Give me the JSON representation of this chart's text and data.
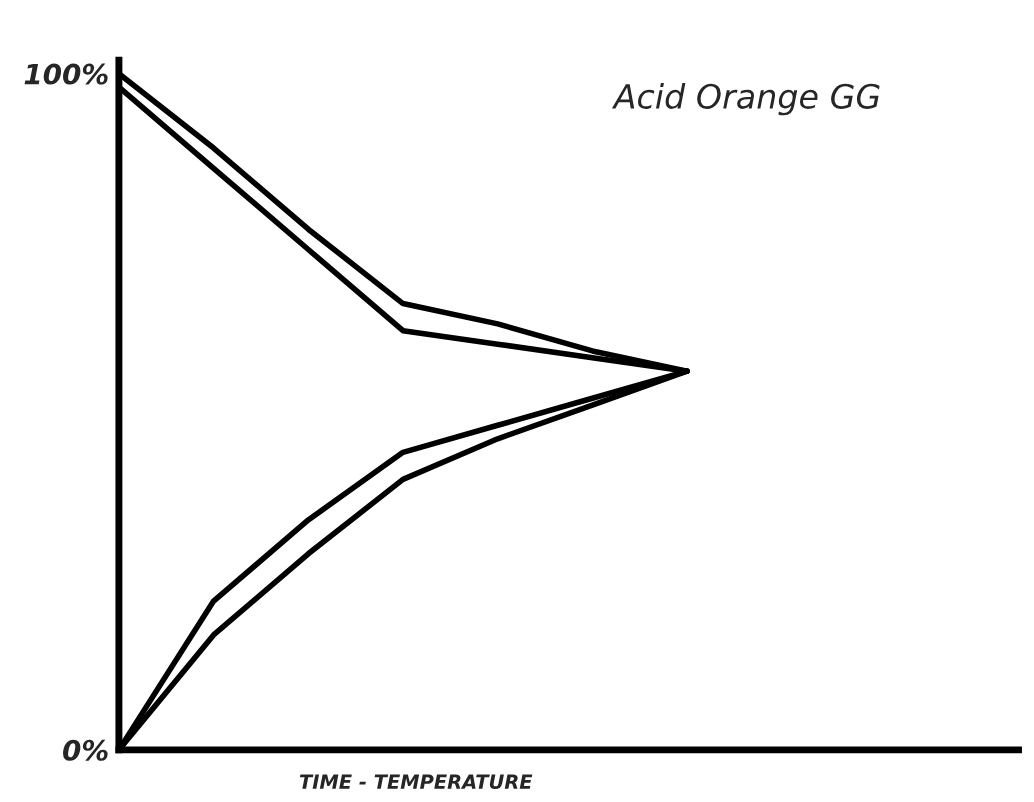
{
  "chart_data": {
    "type": "line",
    "title": "Acid Orange GG",
    "xlabel": "TIME - TEMPERATURE",
    "categories": [
      null,
      null,
      null,
      null,
      null,
      null,
      null,
      null,
      null,
      null
    ],
    "ylim": [
      0,
      102
    ],
    "yticks": [
      {
        "value": 0,
        "label": "0%"
      },
      {
        "value": 100,
        "label": "100%"
      }
    ],
    "grid": false,
    "marker": "none",
    "line_style": "solid",
    "series": [
      {
        "color": "#000000",
        "values": [
          100,
          89,
          77,
          66,
          63,
          59,
          56,
          null,
          null,
          null
        ]
      },
      {
        "color": "#000000",
        "values": [
          98,
          86,
          74,
          62,
          60,
          58,
          56,
          null,
          null,
          null
        ]
      },
      {
        "color": "#000000",
        "values": [
          0,
          22,
          34,
          44,
          48,
          52,
          56,
          null,
          null,
          null
        ]
      },
      {
        "color": "#000000",
        "values": [
          0,
          17,
          29,
          40,
          46,
          51,
          56,
          null,
          null,
          null
        ]
      }
    ]
  }
}
